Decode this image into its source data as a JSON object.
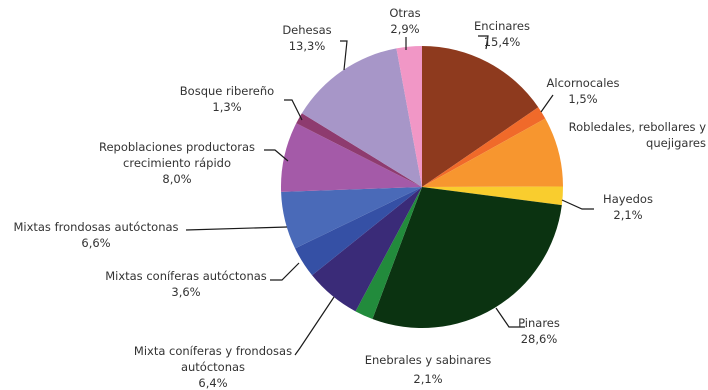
{
  "chart_data": {
    "type": "pie",
    "title": "",
    "slices": [
      {
        "name": "Encinares",
        "value": 15.4,
        "label": "15,4%",
        "color": "#8e3a1e"
      },
      {
        "name": "Alcornocales",
        "value": 1.5,
        "label": "1,5%",
        "color": "#f06a2a"
      },
      {
        "name": "Robledales, rebollares y quejigares",
        "value": 8.0,
        "label": "",
        "color": "#f7962f"
      },
      {
        "name": "Hayedos",
        "value": 2.1,
        "label": "2,1%",
        "color": "#f9cd2e"
      },
      {
        "name": "Pinares",
        "value": 28.6,
        "label": "28,6%",
        "color": "#0b3311"
      },
      {
        "name": "Enebrales y sabinares",
        "value": 2.1,
        "label": "2,1%",
        "color": "#228b3c"
      },
      {
        "name": "Mixta coníferas y frondosas autóctonas",
        "value": 6.4,
        "label": "6,4%",
        "color": "#3a2b78"
      },
      {
        "name": "Mixtas coníferas autóctonas",
        "value": 3.6,
        "label": "3,6%",
        "color": "#3550a5"
      },
      {
        "name": "Mixtas frondosas autóctonas",
        "value": 6.6,
        "label": "6,6%",
        "color": "#4a6ab8"
      },
      {
        "name": "Repoblaciones productoras crecimiento rápido",
        "value": 8.0,
        "label": "8,0%",
        "color": "#a45aa8"
      },
      {
        "name": "Bosque ribereño",
        "value": 1.3,
        "label": "1,3%",
        "color": "#8e3b6f"
      },
      {
        "name": "Dehesas",
        "value": 13.3,
        "label": "13,3%",
        "color": "#a796c8"
      },
      {
        "name": "Otras",
        "value": 2.9,
        "label": "2,9%",
        "color": "#f197c6"
      }
    ]
  }
}
